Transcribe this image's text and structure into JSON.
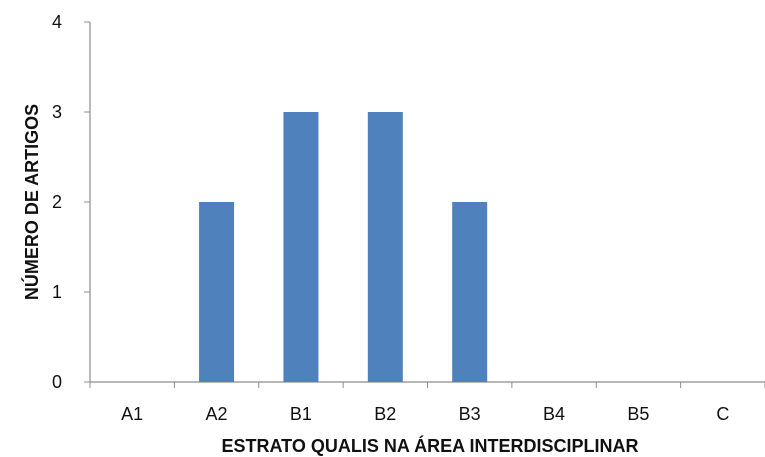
{
  "chart_data": {
    "type": "bar",
    "categories": [
      "A1",
      "A2",
      "B1",
      "B2",
      "B3",
      "B4",
      "B5",
      "C"
    ],
    "values": [
      0,
      2,
      3,
      3,
      2,
      0,
      0,
      0
    ],
    "title": "",
    "xlabel": "ESTRATO QUALIS NA ÁREA INTERDISCIPLINAR",
    "ylabel": "NÚMERO DE ARTIGOS",
    "ylim": [
      0,
      4
    ],
    "yticks": [
      "0",
      "1",
      "2",
      "3",
      "4"
    ],
    "grid": false,
    "legend": "none",
    "bar_color": "#4f81bd"
  }
}
